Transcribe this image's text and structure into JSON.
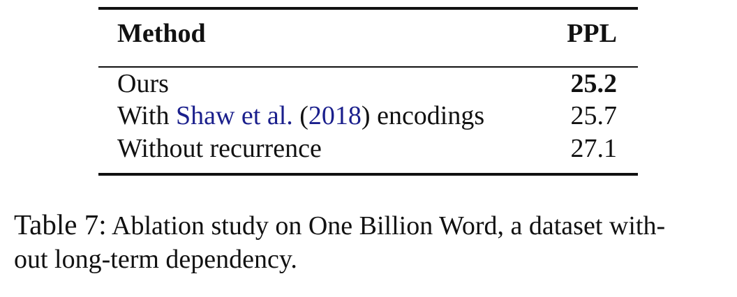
{
  "table": {
    "headers": {
      "method": "Method",
      "ppl": "PPL"
    },
    "rows": [
      {
        "method_before": "Ours",
        "cite_name": "",
        "cite_open": "",
        "cite_year": "",
        "method_after": "",
        "ppl": "25.2",
        "bold": true
      },
      {
        "method_before": "With ",
        "cite_name": "Shaw et al.",
        "cite_open": " (",
        "cite_year": "2018",
        "method_after": ") encodings",
        "ppl": "25.7",
        "bold": false
      },
      {
        "method_before": "Without recurrence",
        "cite_name": "",
        "cite_open": "",
        "cite_year": "",
        "method_after": "",
        "ppl": "27.1",
        "bold": false
      }
    ]
  },
  "caption": {
    "label": "Table 7:",
    "line1": "Ablation study on One Billion Word, a dataset with-",
    "line2": "out long-term dependency."
  },
  "colors": {
    "citation_link": "#1a1f8c",
    "text": "#111111"
  }
}
